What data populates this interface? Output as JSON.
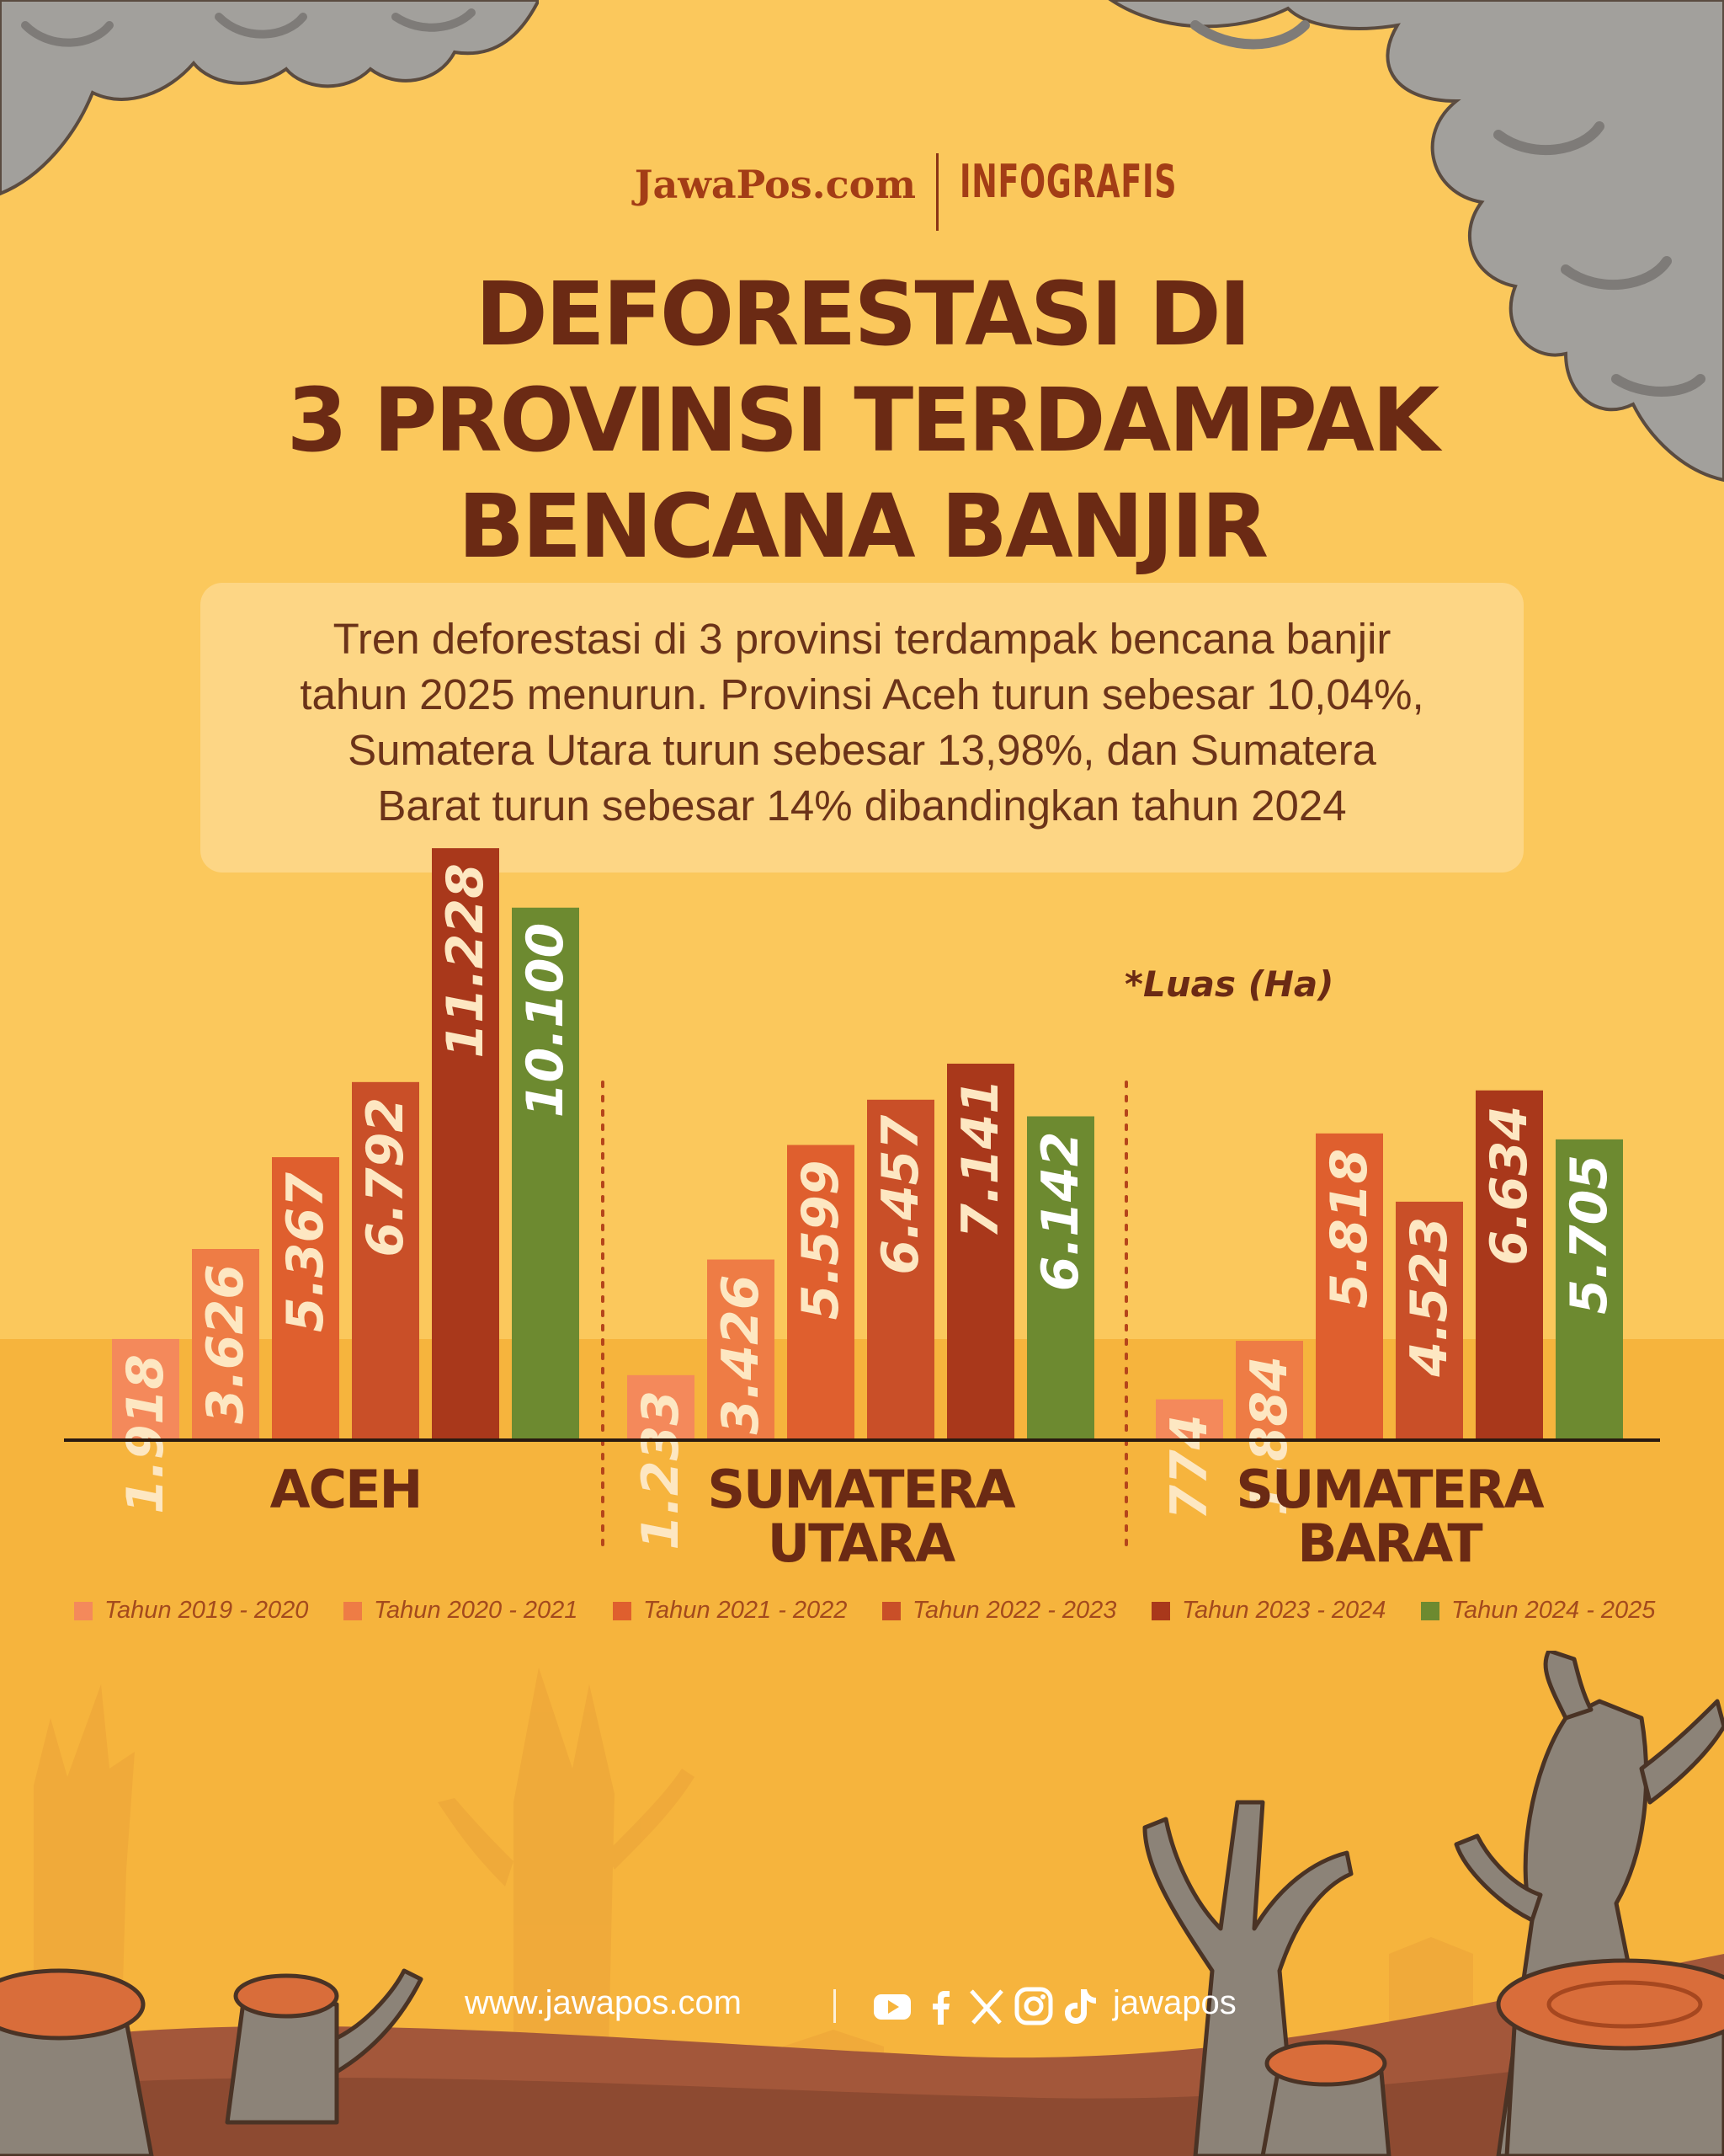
{
  "header": {
    "brand": "JawaPos.com",
    "section": "INFOGRAFIS",
    "title_lines": [
      "DEFORESTASI DI",
      "3 PROVINSI TERDAMPAK",
      "BENCANA BANJIR"
    ]
  },
  "description": {
    "lines": [
      "Tren deforestasi di 3 provinsi terdampak bencana banjir",
      "tahun 2025 menurun. Provinsi Aceh turun sebesar 10,04%,",
      "Sumatera Utara turun sebesar 13,98%, dan Sumatera",
      "Barat turun sebesar 14% dibandingkan tahun 2024"
    ]
  },
  "unit_note": "*Luas (Ha)",
  "chart_data": {
    "type": "bar",
    "ylabel": "*Luas (Ha)",
    "categories": [
      "Tahun 2019 - 2020",
      "Tahun 2020 - 2021",
      "Tahun 2021 - 2022",
      "Tahun 2022 - 2023",
      "Tahun 2023 - 2024",
      "Tahun 2024 - 2025"
    ],
    "groups": [
      {
        "name_lines": [
          "ACEH"
        ],
        "values": [
          1918,
          3626,
          5367,
          6792,
          11228,
          10100
        ],
        "labels": [
          "1.918",
          "3.626",
          "5.367",
          "6.792",
          "11.228",
          "10.100"
        ]
      },
      {
        "name_lines": [
          "SUMATERA",
          "UTARA"
        ],
        "values": [
          1233,
          3426,
          5599,
          6457,
          7141,
          6142
        ],
        "labels": [
          "1.233",
          "3.426",
          "5.599",
          "6.457",
          "7.141",
          "6.142"
        ]
      },
      {
        "name_lines": [
          "SUMATERA",
          "BARAT"
        ],
        "values": [
          774,
          1884,
          5818,
          4523,
          6634,
          5705
        ],
        "labels": [
          "774",
          "1.884",
          "5.818",
          "4.523",
          "6.634",
          "5.705"
        ]
      }
    ],
    "colors": [
      "#f4895b",
      "#ee7c45",
      "#df5f2e",
      "#c94f28",
      "#a9381b",
      "#6d8a30"
    ],
    "label_colors": [
      "#fde7c2",
      "#fde7c2",
      "#fde7c2",
      "#fde7c2",
      "#fde7c2",
      "#ffffff"
    ],
    "legend_position": "bottom"
  },
  "footer": {
    "url": "www.jawapos.com",
    "handle": "jawapos",
    "social_icons": [
      "youtube-icon",
      "facebook-icon",
      "x-icon",
      "instagram-icon",
      "tiktok-icon"
    ]
  }
}
